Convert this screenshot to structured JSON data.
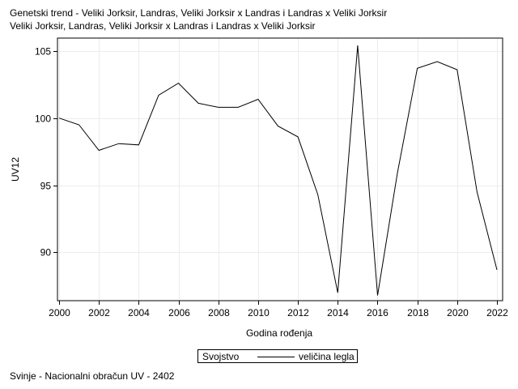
{
  "chart_data": {
    "type": "line",
    "title": "Genetski trend - Veliki Jorksir, Landras, Veliki Jorksir x Landras i Landras x Veliki Jorksir",
    "subtitle": "Veliki Jorksir, Landras, Veliki Jorksir x Landras i Landras x Veliki Jorksir",
    "xlabel": "Godina rođenja",
    "ylabel": "UV12",
    "xlim": [
      2000,
      2022
    ],
    "ylim": [
      86.5,
      105.8
    ],
    "xticks": [
      2000,
      2002,
      2004,
      2006,
      2008,
      2010,
      2012,
      2014,
      2016,
      2018,
      2020,
      2022
    ],
    "yticks": [
      90,
      95,
      100,
      105
    ],
    "grid": true,
    "legend": {
      "placement": "bottom-center",
      "title": "Svojstvo"
    },
    "series": [
      {
        "name": "veličina legla",
        "x": [
          2000,
          2001,
          2002,
          2003,
          2004,
          2005,
          2006,
          2007,
          2008,
          2009,
          2010,
          2011,
          2012,
          2013,
          2014,
          2015,
          2016,
          2017,
          2018,
          2019,
          2020,
          2021,
          2022
        ],
        "values": [
          100.0,
          99.5,
          97.6,
          98.1,
          98.0,
          101.7,
          102.6,
          101.1,
          100.8,
          100.8,
          101.4,
          99.4,
          98.6,
          94.3,
          87.0,
          105.4,
          86.8,
          95.9,
          103.7,
          104.2,
          103.6,
          94.5,
          88.7
        ]
      }
    ]
  },
  "footnote": "Svinje - Nacionalni obračun UV - 2402"
}
